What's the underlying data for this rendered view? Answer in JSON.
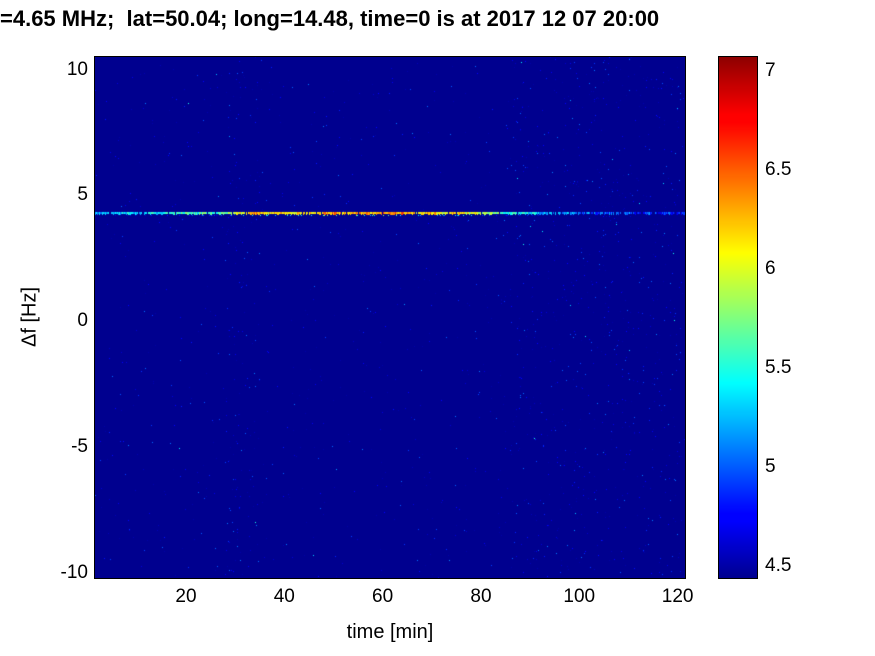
{
  "chart_data": {
    "type": "heatmap",
    "title": "=4.65 MHz;  lat=50.04; long=14.48, time=0 is at 2017 12 07 20:00",
    "xlabel": "time [min]",
    "ylabel": "Δf [Hz]",
    "xlim": [
      1.5,
      121.5
    ],
    "ylim": [
      -10.2,
      10.5
    ],
    "xticks": [
      20,
      40,
      60,
      80,
      100,
      120
    ],
    "yticks": [
      10,
      5,
      0,
      -5,
      -10
    ],
    "grid": false,
    "colormap": "jet",
    "background_value": 4.44,
    "colorbar": {
      "position": "right",
      "min": 4.44,
      "max": 7.07,
      "ticks": [
        7,
        6.5,
        6,
        5.5,
        5,
        4.5
      ]
    },
    "signal_line": {
      "delta_f_hz": 4.3,
      "description": "narrow horizontal Doppler trace, intensity varies with time",
      "t": [
        2,
        4,
        6,
        8,
        10,
        12,
        14,
        16,
        18,
        20,
        22,
        24,
        26,
        28,
        30,
        32,
        34,
        36,
        38,
        40,
        42,
        44,
        46,
        48,
        50,
        52,
        54,
        56,
        58,
        60,
        62,
        64,
        66,
        68,
        70,
        72,
        74,
        76,
        78,
        80,
        82,
        84,
        86,
        88,
        90,
        92,
        94,
        96,
        98,
        100,
        102,
        104,
        106,
        108,
        110,
        112,
        114,
        116,
        118,
        120
      ],
      "values": [
        5.2,
        5.3,
        5.2,
        5.4,
        5.3,
        5.5,
        5.4,
        5.5,
        5.6,
        5.6,
        5.5,
        5.7,
        5.6,
        5.8,
        5.9,
        6.1,
        6.3,
        6.0,
        6.2,
        6.3,
        6.1,
        6.2,
        6.1,
        6.3,
        6.4,
        6.2,
        6.4,
        6.3,
        6.2,
        6.4,
        6.3,
        6.4,
        6.2,
        6.1,
        6.3,
        6.0,
        6.2,
        6.1,
        6.0,
        5.9,
        5.8,
        5.6,
        5.5,
        5.4,
        5.4,
        5.2,
        5.3,
        5.1,
        5.2,
        5.0,
        5.1,
        4.9,
        5.0,
        4.9,
        5.1,
        4.8,
        5.0,
        4.8,
        4.9,
        4.8
      ],
      "jitter": 0.5,
      "gap_probability_dim": 0.18,
      "gap_probability_bright": 0.05
    },
    "noise": {
      "seed": 42,
      "base_dots": 950,
      "stripe_bands_t": [
        [
          28,
          35
        ],
        [
          86,
          121
        ]
      ],
      "stripe_dots": 750,
      "value_range": [
        4.5,
        5.1
      ]
    }
  }
}
